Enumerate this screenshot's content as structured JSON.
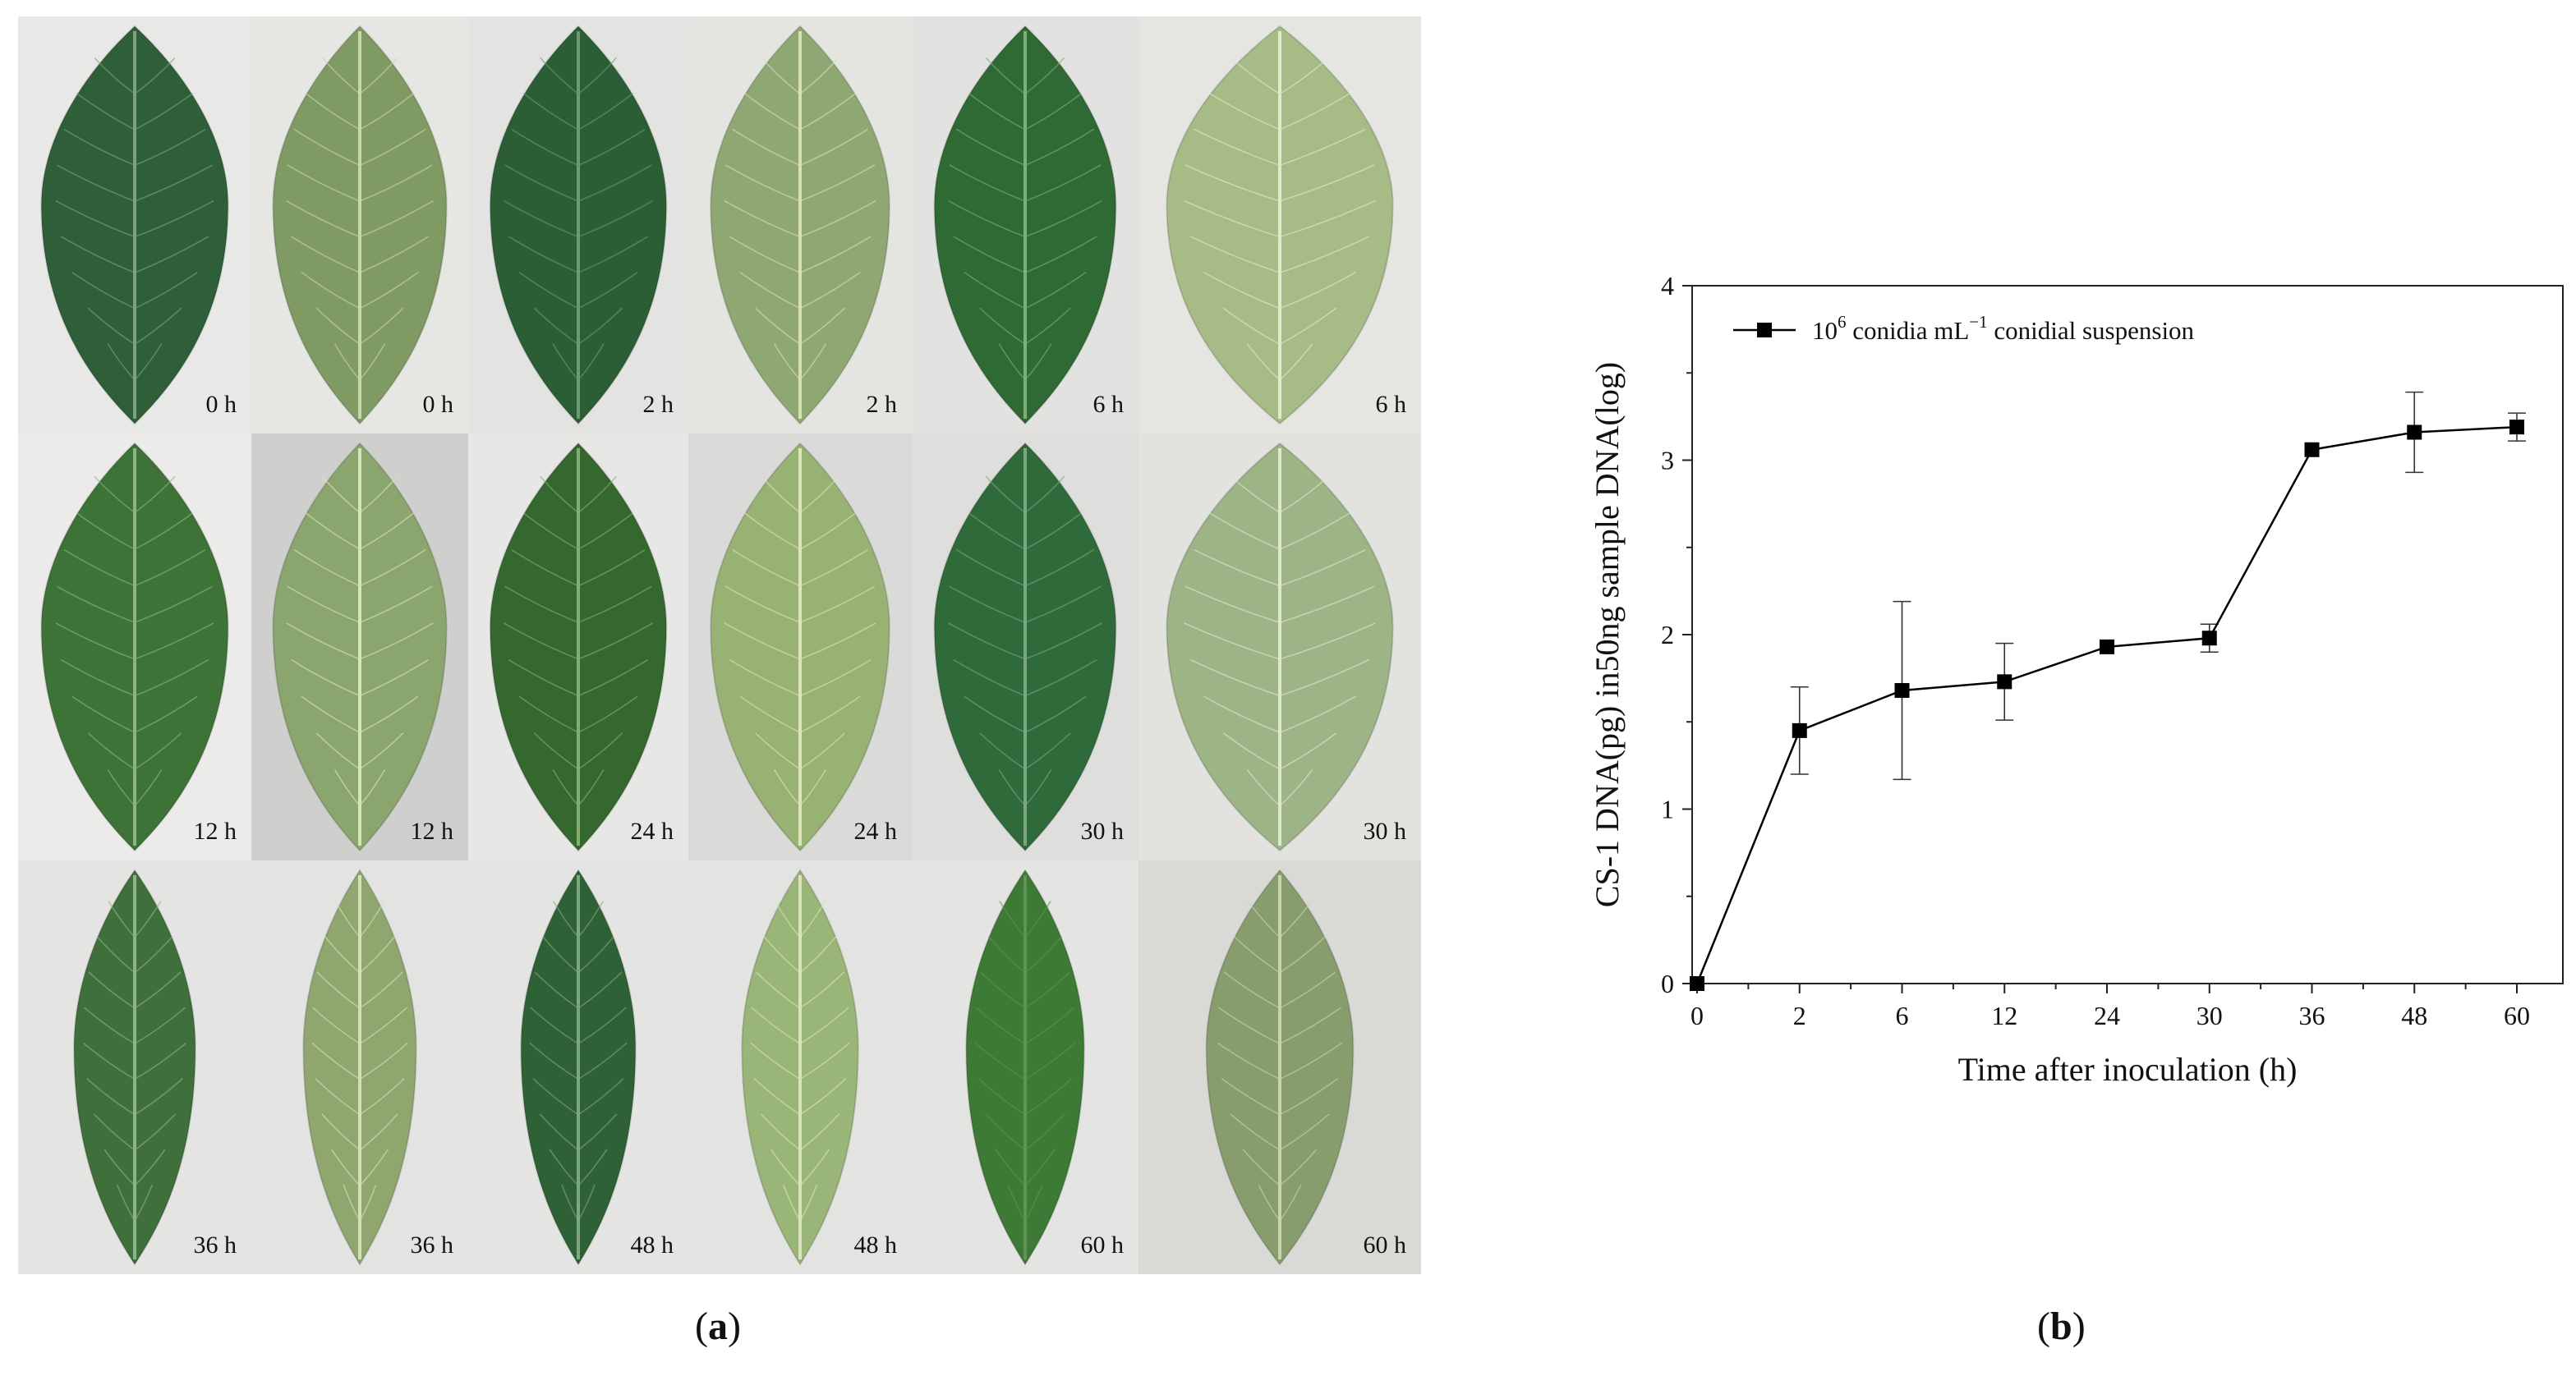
{
  "panel_labels": {
    "a": "a",
    "b": "b"
  },
  "leaf_grid": {
    "rows": [
      {
        "tiles": [
          {
            "label": "0 h",
            "side": "upper",
            "bg": "#e8e8e6",
            "leaf": "#2f5f39",
            "vein": "#7fa183"
          },
          {
            "label": "0 h",
            "side": "lower",
            "bg": "#e6e6e3",
            "leaf": "#7f9b63",
            "vein": "#c9d6a8"
          },
          {
            "label": "2 h",
            "side": "upper",
            "bg": "#e3e4e1",
            "leaf": "#2c5e35",
            "vein": "#6d9a73"
          },
          {
            "label": "2 h",
            "side": "lower",
            "bg": "#e4e4e1",
            "leaf": "#8fa873",
            "vein": "#d6e0b5"
          },
          {
            "label": "6 h",
            "side": "upper",
            "bg": "#e2e3e0",
            "leaf": "#2f6a34",
            "vein": "#7fae79"
          },
          {
            "label": "6 h",
            "side": "lower",
            "bg": "#e5e5e2",
            "leaf": "#a6bb86",
            "vein": "#e2e9c8"
          }
        ]
      },
      {
        "tiles": [
          {
            "label": "12 h",
            "side": "upper",
            "bg": "#ecebe9",
            "leaf": "#3e7338",
            "vein": "#8bb47f"
          },
          {
            "label": "12 h",
            "side": "lower",
            "bg": "#cfcfcd",
            "leaf": "#8aa66e",
            "vein": "#d9e3b9"
          },
          {
            "label": "24 h",
            "side": "upper",
            "bg": "#e7e7e5",
            "leaf": "#35682f",
            "vein": "#84ad75"
          },
          {
            "label": "24 h",
            "side": "lower",
            "bg": "#dadad8",
            "leaf": "#98b274",
            "vein": "#dbe5b8"
          },
          {
            "label": "30 h",
            "side": "upper",
            "bg": "#dedfdc",
            "leaf": "#2f6a3a",
            "vein": "#7aa77f"
          },
          {
            "label": "30 h",
            "side": "lower",
            "bg": "#e2e2df",
            "leaf": "#9db487",
            "vein": "#dfe8c9"
          }
        ]
      },
      {
        "tiles": [
          {
            "label": "36 h",
            "side": "upper",
            "bg": "#e4e4e2",
            "leaf": "#3f6f3a",
            "vein": "#8db487"
          },
          {
            "label": "36 h",
            "side": "lower",
            "bg": "#e3e3e1",
            "leaf": "#8fa76f",
            "vein": "#d5dfb5"
          },
          {
            "label": "48 h",
            "side": "upper",
            "bg": "#e4e4e2",
            "leaf": "#2e6236",
            "vein": "#7ea77f"
          },
          {
            "label": "48 h",
            "side": "lower",
            "bg": "#e3e3e1",
            "leaf": "#9ab578",
            "vein": "#dae4ba"
          },
          {
            "label": "60 h",
            "side": "upper",
            "bg": "#e4e4e2",
            "leaf": "#3d7a35",
            "vein": "#5f9453"
          },
          {
            "label": "60 h",
            "side": "lower",
            "bg": "#d9d9d6",
            "leaf": "#879d6e",
            "vein": "#c9d4ad"
          }
        ]
      }
    ]
  },
  "chart_data": {
    "type": "line",
    "title": "",
    "xlabel": "Time after inoculation (h)",
    "ylabel": "CS-1 DNA(pg) in50ng sample DNA(log)",
    "categories": [
      "0",
      "2",
      "6",
      "12",
      "24",
      "30",
      "36",
      "48",
      "60"
    ],
    "yticks": [
      "0",
      "1",
      "2",
      "3",
      "4"
    ],
    "ylim": [
      0,
      4
    ],
    "grid": false,
    "legend_position": "top-left",
    "series": [
      {
        "name_prefix": "10",
        "name_exponent": "6",
        "name_mid": " conidia mL",
        "name_unit_exponent": "−1",
        "name_suffix": "  conidial suspension",
        "values": [
          0.0,
          1.45,
          1.68,
          1.73,
          1.93,
          1.98,
          3.06,
          3.16,
          3.19
        ],
        "errors": [
          0.0,
          0.25,
          0.51,
          0.22,
          0.0,
          0.08,
          0.0,
          0.23,
          0.08
        ],
        "color": "#000000",
        "marker": "square"
      }
    ]
  }
}
